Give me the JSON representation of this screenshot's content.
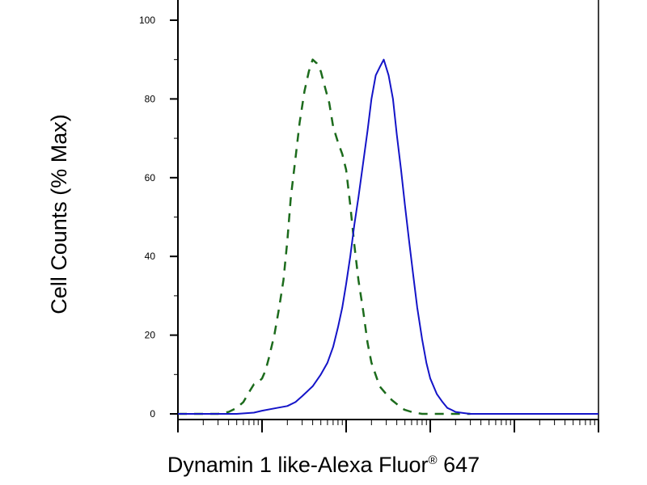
{
  "chart_data": {
    "type": "line",
    "xlabel": "Dynamin 1 like-Alexa Fluor",
    "xlabel_mark": "®",
    "xlabel_suffix": "647",
    "ylabel": "Cell Counts (% Max)",
    "x_scale": "log",
    "xlim": [
      1,
      100000
    ],
    "ylim": [
      0,
      100
    ],
    "y_ticks": [
      0,
      20,
      40,
      60,
      80,
      100
    ],
    "grid": false,
    "legend": "none",
    "series": [
      {
        "color": "#1c6b1c",
        "style": "dashed",
        "x": [
          1,
          2,
          3,
          4,
          5,
          6,
          7,
          8,
          9,
          10,
          11,
          12,
          14,
          16,
          18,
          20,
          22,
          25,
          28,
          32,
          36,
          40,
          45,
          50,
          56,
          63,
          70,
          80,
          90,
          100,
          112,
          125,
          140,
          160,
          180,
          200,
          250,
          300,
          350,
          400,
          450,
          500,
          600,
          700,
          800,
          1000,
          1200,
          1500,
          2000,
          2500,
          3000
        ],
        "y": [
          0,
          0,
          0,
          0.5,
          1.5,
          3,
          5.5,
          7.5,
          8,
          9,
          11,
          14,
          20,
          27,
          34,
          44,
          55,
          65,
          74,
          82,
          87,
          90,
          89,
          87,
          83,
          79,
          73,
          69,
          66,
          62,
          53,
          43,
          34,
          26,
          18,
          13,
          7,
          5,
          3.5,
          2.5,
          1.5,
          1,
          0.5,
          0.2,
          0,
          0,
          0,
          0,
          0,
          0,
          0
        ]
      },
      {
        "color": "#1414c8",
        "style": "solid",
        "x": [
          1,
          5,
          8,
          10,
          15,
          20,
          25,
          30,
          40,
          50,
          60,
          70,
          80,
          90,
          100,
          112,
          125,
          140,
          160,
          180,
          200,
          225,
          250,
          280,
          320,
          360,
          400,
          450,
          500,
          560,
          630,
          700,
          800,
          900,
          1000,
          1200,
          1400,
          1600,
          1800,
          2000,
          2500,
          3000,
          4000,
          5000,
          7000,
          10000,
          100000
        ],
        "y": [
          0,
          0,
          0.3,
          0.8,
          1.5,
          2,
          3,
          4.5,
          7,
          10,
          13,
          17,
          22,
          27,
          33,
          40,
          48,
          55,
          64,
          72,
          80,
          86,
          88,
          90,
          86,
          80,
          71,
          62,
          53,
          44,
          35,
          27,
          19,
          13,
          9,
          5,
          3,
          1.5,
          1,
          0.5,
          0.2,
          0,
          0,
          0,
          0,
          0,
          0
        ]
      }
    ]
  }
}
